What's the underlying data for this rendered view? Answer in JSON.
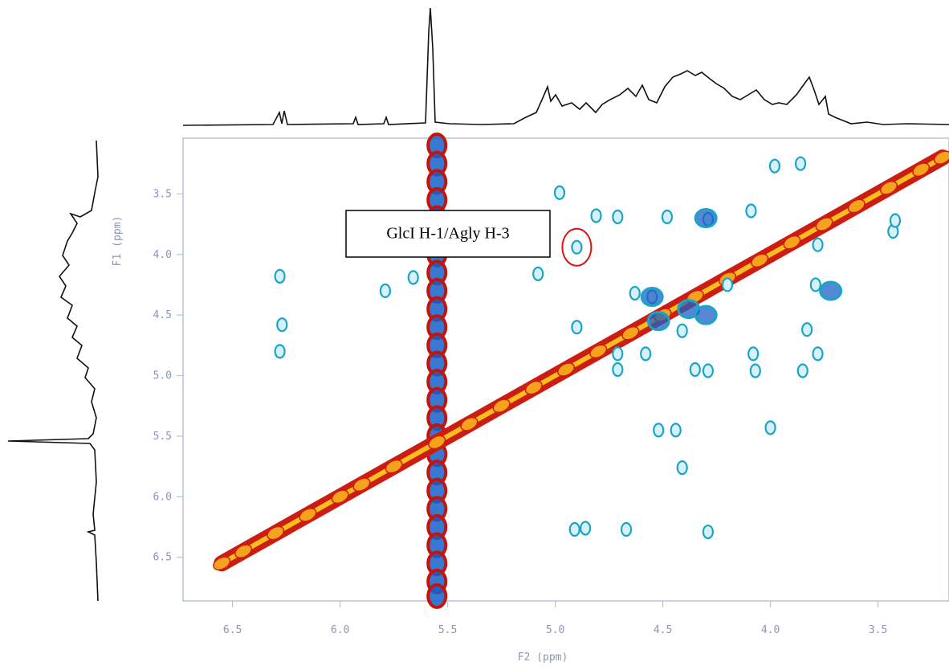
{
  "chart_data": {
    "type": "contour",
    "x_label": "F2 (ppm)",
    "y_label": "F1 (ppm)",
    "annotation": "GlcI H-1/Agly H-3",
    "xlim": [
      3.17,
      6.73
    ],
    "x_reversed": true,
    "xticks": [
      6.5,
      {
        "value": 6,
        "label": "6.0"
      },
      5.5,
      {
        "value": 5,
        "label": "5.0"
      },
      4.5,
      {
        "value": 4,
        "label": "4.0"
      },
      3.5
    ],
    "ylim": [
      3.04,
      6.86
    ],
    "y_reversed": true,
    "yticks": [
      3.5,
      {
        "value": 4,
        "label": "4.0"
      },
      4.5,
      {
        "value": 5,
        "label": "5.0"
      },
      5.5,
      {
        "value": 6,
        "label": "6.0"
      },
      6.5
    ],
    "cross_peaks": {
      "color": "#1aa5c8",
      "x": [
        4.9,
        6.28,
        6.27,
        6.28,
        5.79,
        5.66,
        4.98,
        4.81,
        4.71,
        4.48,
        4.29,
        4.09,
        3.78,
        3.43,
        3.42,
        3.98,
        3.86,
        4.63,
        4.9,
        4.71,
        4.58,
        4.71,
        4.35,
        4.29,
        4.08,
        4.07,
        3.85,
        3.78,
        3.83,
        3.79,
        5.08,
        4.44,
        4.41,
        4.0,
        4.52,
        4.91,
        4.86,
        4.67,
        4.29,
        4.2,
        4.41,
        4.55
      ],
      "y": [
        3.94,
        4.18,
        4.58,
        4.8,
        4.3,
        4.19,
        3.49,
        3.68,
        3.69,
        3.69,
        3.71,
        3.64,
        3.92,
        3.81,
        3.72,
        3.27,
        3.25,
        4.32,
        4.6,
        4.82,
        4.82,
        4.95,
        4.95,
        4.96,
        4.82,
        4.96,
        4.96,
        4.82,
        4.62,
        4.25,
        4.16,
        5.45,
        5.76,
        5.43,
        5.45,
        6.27,
        6.26,
        6.27,
        6.29,
        4.25,
        4.63,
        4.35
      ]
    },
    "strong_peaks": {
      "color": "#1c5fc4",
      "x": [
        4.55,
        4.3,
        4.52,
        4.38,
        3.72,
        4.3
      ],
      "y": [
        4.35,
        3.7,
        4.55,
        4.45,
        4.3,
        4.5
      ]
    },
    "diagonal": {
      "color": "#cc1d12",
      "core_color": "#ffd21f",
      "values": [
        6.55,
        6.45,
        6.3,
        6.15,
        6.0,
        5.9,
        5.75,
        5.55,
        5.4,
        5.25,
        5.1,
        4.95,
        4.8,
        4.65,
        4.5,
        4.35,
        4.2,
        4.05,
        3.9,
        3.75,
        3.6,
        3.45,
        3.3,
        3.2
      ]
    },
    "t1_noise": {
      "color": "#1560c8",
      "edge_color": "#c3150e",
      "x": [
        5.55,
        5.55,
        5.55,
        5.55,
        5.55,
        5.55,
        5.55,
        5.55,
        5.55,
        5.55,
        5.55,
        5.55,
        5.55,
        5.55,
        5.55,
        5.55,
        5.55,
        5.55,
        5.55,
        5.55,
        5.55,
        5.55,
        5.55,
        5.55,
        5.55,
        5.55
      ],
      "y": [
        3.1,
        3.25,
        3.4,
        3.55,
        3.7,
        3.85,
        4.0,
        4.15,
        4.3,
        4.45,
        4.6,
        4.75,
        4.9,
        5.05,
        5.2,
        5.35,
        5.5,
        5.65,
        5.8,
        5.95,
        6.1,
        6.25,
        6.4,
        6.55,
        6.7,
        6.82
      ]
    }
  }
}
